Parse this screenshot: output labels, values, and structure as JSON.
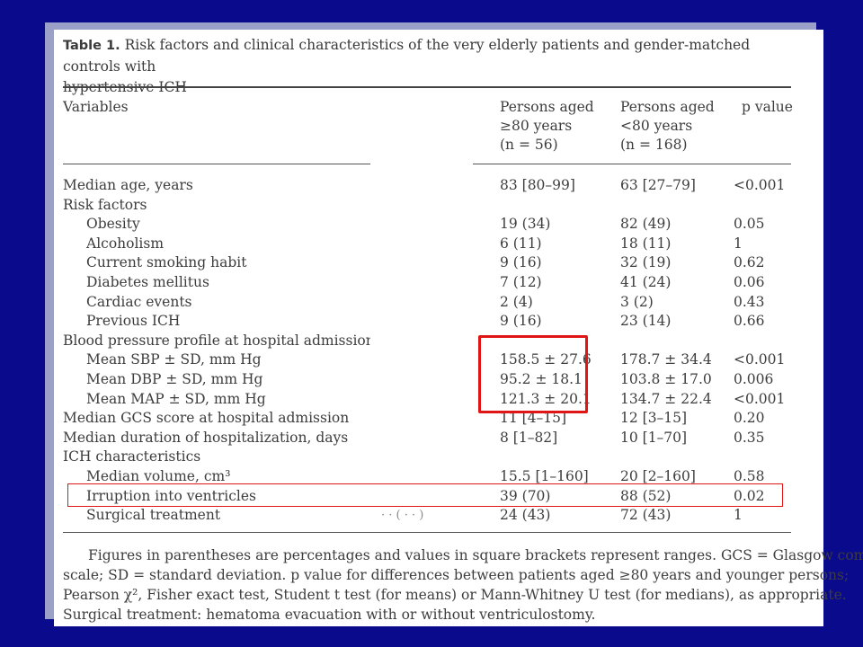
{
  "table": {
    "label": "Table 1.",
    "caption_line1": "Risk factors and clinical characteristics of the very elderly patients and gender-matched controls with",
    "caption_line2": "hypertensive ICH",
    "headers": {
      "variables": "Variables",
      "col1": [
        "Persons aged",
        "≥80 years",
        "(n = 56)"
      ],
      "col2": [
        "Persons aged",
        "<80 years",
        "(n = 168)"
      ],
      "col3": "p value"
    },
    "rows": [
      {
        "variable": "Median age, years",
        "indent": false,
        "col1": "83 [80–99]",
        "col2": "63 [27–79]",
        "p": "<0.001"
      },
      {
        "variable": "Risk factors",
        "indent": false,
        "col1": "",
        "col2": "",
        "p": ""
      },
      {
        "variable": "Obesity",
        "indent": true,
        "col1": "19 (34)",
        "col2": "82 (49)",
        "p": "0.05"
      },
      {
        "variable": "Alcoholism",
        "indent": true,
        "col1": "6 (11)",
        "col2": "18 (11)",
        "p": "1"
      },
      {
        "variable": "Current smoking habit",
        "indent": true,
        "col1": "9 (16)",
        "col2": "32 (19)",
        "p": "0.62"
      },
      {
        "variable": "Diabetes mellitus",
        "indent": true,
        "col1": "7 (12)",
        "col2": "41 (24)",
        "p": "0.06"
      },
      {
        "variable": "Cardiac events",
        "indent": true,
        "col1": "2 (4)",
        "col2": "3 (2)",
        "p": "0.43"
      },
      {
        "variable": "Previous ICH",
        "indent": true,
        "col1": "9 (16)",
        "col2": "23 (14)",
        "p": "0.66"
      },
      {
        "variable": "Blood pressure profile at hospital admission",
        "indent": false,
        "col1": "",
        "col2": "",
        "p": ""
      },
      {
        "variable": "Mean SBP ± SD, mm Hg",
        "indent": true,
        "col1": "158.5 ± 27.6",
        "col2": "178.7 ± 34.4",
        "p": "<0.001"
      },
      {
        "variable": "Mean DBP ± SD, mm Hg",
        "indent": true,
        "col1": "95.2 ± 18.1",
        "col2": "103.8 ± 17.0",
        "p": "0.006"
      },
      {
        "variable": "Mean MAP ± SD, mm Hg",
        "indent": true,
        "col1": "121.3 ± 20.1",
        "col2": "134.7 ± 22.4",
        "p": "<0.001"
      },
      {
        "variable": "Median GCS score at hospital admission",
        "indent": false,
        "col1": "11 [4–15]",
        "col2": "12 [3–15]",
        "p": "0.20"
      },
      {
        "variable": "Median duration of hospitalization, days",
        "indent": false,
        "col1": "8 [1–82]",
        "col2": "10 [1–70]",
        "p": "0.35"
      },
      {
        "variable": "ICH characteristics",
        "indent": false,
        "col1": "",
        "col2": "",
        "p": ""
      },
      {
        "variable": "Median volume, cm³",
        "indent": true,
        "col1": "15.5 [1–160]",
        "col2": "20 [2–160]",
        "p": "0.58"
      },
      {
        "variable": "Irruption into ventricles",
        "indent": true,
        "col1": "39 (70)",
        "col2": "88 (52)",
        "p": "0.02"
      },
      {
        "variable": "Surgical treatment",
        "indent": true,
        "col1": "24 (43)",
        "col2": "72 (43)",
        "p": "1"
      }
    ],
    "footnote": [
      "Figures in parentheses are percentages and values in square brackets represent ranges. GCS = Glasgow coma",
      "scale; SD = standard deviation. p value for differences between patients aged ≥80 years and younger persons;",
      "Pearson χ², Fisher exact test, Student t test (for means) or Mann-Whitney U test (for medians), as appropriate.",
      "Surgical treatment: hematoma evacuation with or without ventriculostomy."
    ]
  },
  "colors": {
    "background": "#0a0a8c",
    "highlight": "#e01515"
  }
}
